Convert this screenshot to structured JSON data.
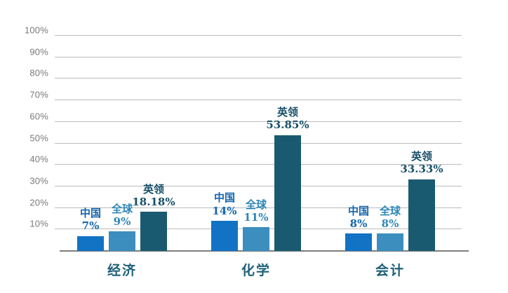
{
  "chart_data": {
    "type": "bar",
    "title": "",
    "categories": [
      "经济",
      "化学",
      "会计"
    ],
    "series": [
      {
        "name": "中国",
        "values": [
          7,
          14,
          8
        ],
        "value_labels": [
          "7%",
          "14%",
          "8%"
        ],
        "bar_color": "#1273c4",
        "label_color": "#1565ab"
      },
      {
        "name": "全球",
        "values": [
          9,
          11,
          8
        ],
        "value_labels": [
          "9%",
          "11%",
          "8%"
        ],
        "bar_color": "#3b8ebd",
        "label_color": "#2e86b8"
      },
      {
        "name": "英领",
        "values": [
          18.18,
          53.85,
          33.33
        ],
        "value_labels": [
          "18.18%",
          "53.85%",
          "33.33%"
        ],
        "bar_color": "#1a5a70",
        "label_color": "#174f68"
      }
    ],
    "xlabel": "",
    "ylabel": "",
    "ylim": [
      0,
      100
    ],
    "yticks": [
      {
        "value": 100,
        "label": "100%"
      },
      {
        "value": 90,
        "label": "90%"
      },
      {
        "value": 80,
        "label": "80%"
      },
      {
        "value": 70,
        "label": "70%"
      },
      {
        "value": 60,
        "label": "60%"
      },
      {
        "value": 50,
        "label": "50%"
      },
      {
        "value": 40,
        "label": "40%"
      },
      {
        "value": 30,
        "label": "30%"
      },
      {
        "value": 20,
        "label": "20%"
      },
      {
        "value": 10,
        "label": "10%"
      }
    ],
    "grid": true,
    "legend_position": "none",
    "annotation_style": "series name and value printed above each bar",
    "colors": {
      "gridline": "#bcbcbc",
      "axis_baseline": "#7d7d7d",
      "y_tick_label": "#7a7a7a",
      "category_label": "#1d6077"
    }
  }
}
